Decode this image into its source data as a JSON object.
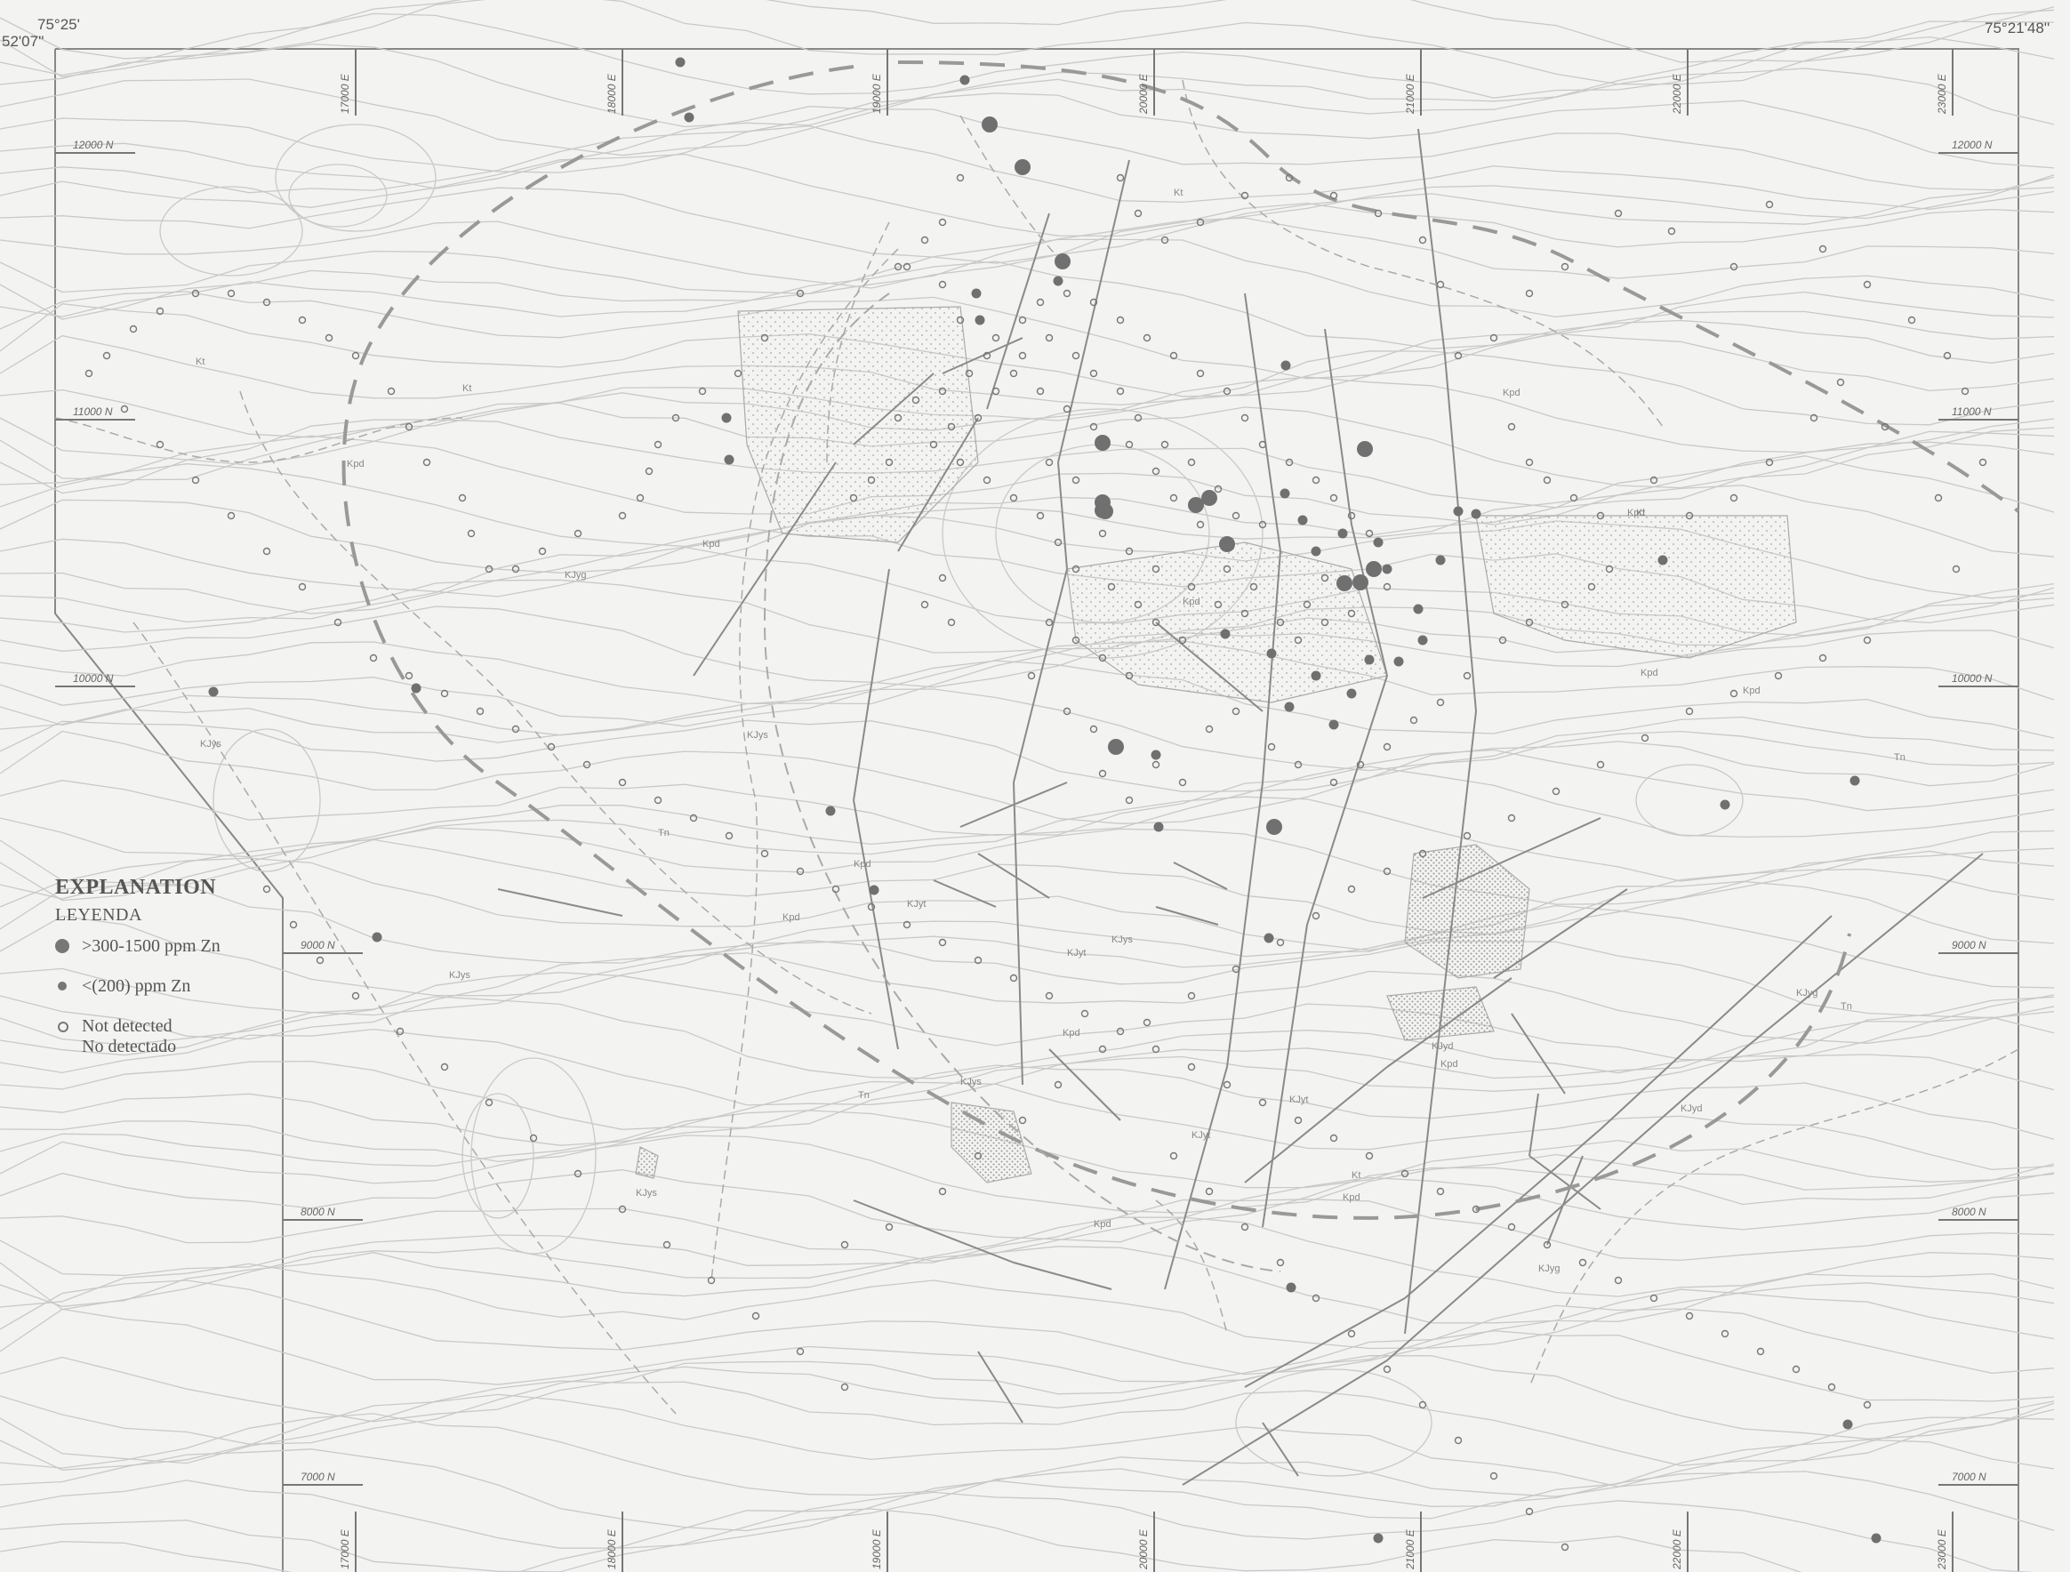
{
  "corners": {
    "top_left_lon": "75°25'",
    "top_left_lat": "52'07''",
    "top_right_lon": "75°21'48''"
  },
  "grid": {
    "easting_top": [
      "17000 E",
      "18000 E",
      "19000 E",
      "20000 E",
      "21000 E",
      "22000 E",
      "23000 E"
    ],
    "easting_bottom": [
      "17000 E",
      "18000 E",
      "19000 E",
      "20000 E",
      "21000 E",
      "22000 E",
      "23000 E"
    ],
    "northing_left": [
      "12000 N",
      "11000 N",
      "10000 N",
      "9000 N",
      "8000 N",
      "7000 N"
    ],
    "northing_right": [
      "12000 N",
      "11000 N",
      "10000 N",
      "9000 N",
      "8000 N",
      "7000 N"
    ]
  },
  "units": [
    "Kt",
    "Kt",
    "Kt",
    "Kt",
    "Kpd",
    "Kpd",
    "Kpd",
    "Kpd",
    "Kpd",
    "Kpd",
    "Kpd",
    "Kpd",
    "Kpd",
    "Kpd",
    "Kpd",
    "Kpd",
    "KJys",
    "KJys",
    "KJys",
    "KJys",
    "KJys",
    "KJys",
    "KJyt",
    "KJyt",
    "KJyt",
    "KJyt",
    "KJyd",
    "KJyd",
    "KJyg",
    "KJyg",
    "KJyg",
    "Tn",
    "Tn",
    "Tn",
    "Tn",
    "Kt",
    "Kpd"
  ],
  "legend": {
    "title": "EXPLANATION",
    "subtitle": "LEYENDA",
    "items": [
      {
        "symbol": "large-filled-dot",
        "label": ">300-1500 ppm Zn"
      },
      {
        "symbol": "small-filled-dot",
        "label": "<(200) ppm Zn"
      },
      {
        "symbol": "open-circle",
        "label": "Not detected",
        "label2": "No detectado"
      }
    ]
  },
  "samples": {
    "high_zn": [
      [
        1240,
        565
      ],
      [
        1240,
        498
      ],
      [
        1360,
        560
      ],
      [
        1345,
        568
      ],
      [
        1535,
        505
      ],
      [
        1545,
        640
      ],
      [
        1512,
        656
      ],
      [
        1530,
        655
      ],
      [
        1380,
        612
      ],
      [
        1255,
        840
      ],
      [
        1433,
        930
      ],
      [
        1195,
        294
      ],
      [
        1150,
        188
      ],
      [
        1113,
        140
      ],
      [
        1243,
        575
      ],
      [
        1240,
        574
      ]
    ],
    "low_zn": [
      [
        765,
        70
      ],
      [
        1085,
        90
      ],
      [
        775,
        132
      ],
      [
        1098,
        330
      ],
      [
        1102,
        360
      ],
      [
        817,
        470
      ],
      [
        820,
        517
      ],
      [
        1190,
        316
      ],
      [
        1446,
        411
      ],
      [
        1445,
        555
      ],
      [
        1465,
        585
      ],
      [
        1480,
        620
      ],
      [
        1510,
        600
      ],
      [
        1550,
        610
      ],
      [
        1560,
        640
      ],
      [
        1640,
        575
      ],
      [
        1620,
        630
      ],
      [
        1600,
        720
      ],
      [
        1595,
        685
      ],
      [
        1660,
        578
      ],
      [
        1870,
        630
      ],
      [
        1940,
        905
      ],
      [
        2086,
        878
      ],
      [
        1427,
        1055
      ],
      [
        1303,
        930
      ],
      [
        1378,
        713
      ],
      [
        1430,
        735
      ],
      [
        1450,
        795
      ],
      [
        1480,
        760
      ],
      [
        1500,
        815
      ],
      [
        1520,
        780
      ],
      [
        1540,
        742
      ],
      [
        1573,
        744
      ],
      [
        1300,
        849
      ],
      [
        983,
        1001
      ],
      [
        1452,
        1448
      ],
      [
        1550,
        1730
      ],
      [
        2078,
        1602
      ],
      [
        2110,
        1730
      ],
      [
        240,
        778
      ],
      [
        468,
        774
      ],
      [
        424,
        1054
      ],
      [
        934,
        912
      ]
    ],
    "not_detected": [
      [
        1020,
        300
      ],
      [
        1060,
        320
      ],
      [
        1080,
        360
      ],
      [
        1120,
        380
      ],
      [
        1140,
        420
      ],
      [
        1170,
        440
      ],
      [
        1200,
        460
      ],
      [
        1230,
        480
      ],
      [
        1270,
        500
      ],
      [
        1300,
        530
      ],
      [
        1320,
        560
      ],
      [
        1350,
        590
      ],
      [
        1380,
        640
      ],
      [
        1410,
        660
      ],
      [
        1440,
        700
      ],
      [
        1460,
        720
      ],
      [
        1490,
        700
      ],
      [
        1520,
        690
      ],
      [
        1560,
        660
      ],
      [
        1050,
        500
      ],
      [
        1080,
        520
      ],
      [
        1110,
        540
      ],
      [
        1140,
        560
      ],
      [
        1170,
        580
      ],
      [
        1190,
        610
      ],
      [
        1210,
        640
      ],
      [
        1250,
        660
      ],
      [
        1280,
        680
      ],
      [
        1300,
        700
      ],
      [
        1330,
        720
      ],
      [
        960,
        560
      ],
      [
        980,
        540
      ],
      [
        1000,
        520
      ],
      [
        1010,
        470
      ],
      [
        1030,
        450
      ],
      [
        1060,
        440
      ],
      [
        1090,
        420
      ],
      [
        1110,
        400
      ],
      [
        1150,
        360
      ],
      [
        1170,
        340
      ],
      [
        1200,
        330
      ],
      [
        1230,
        340
      ],
      [
        1260,
        360
      ],
      [
        1290,
        380
      ],
      [
        1320,
        400
      ],
      [
        1350,
        420
      ],
      [
        1380,
        440
      ],
      [
        1400,
        470
      ],
      [
        1420,
        500
      ],
      [
        1450,
        520
      ],
      [
        1480,
        540
      ],
      [
        1500,
        560
      ],
      [
        1520,
        580
      ],
      [
        1540,
        600
      ],
      [
        1490,
        650
      ],
      [
        1470,
        680
      ],
      [
        1420,
        590
      ],
      [
        1390,
        580
      ],
      [
        1370,
        550
      ],
      [
        1340,
        520
      ],
      [
        1310,
        500
      ],
      [
        1280,
        470
      ],
      [
        1260,
        440
      ],
      [
        1230,
        420
      ],
      [
        1210,
        400
      ],
      [
        1180,
        380
      ],
      [
        1150,
        400
      ],
      [
        1120,
        440
      ],
      [
        1100,
        470
      ],
      [
        1070,
        480
      ],
      [
        1180,
        520
      ],
      [
        1210,
        540
      ],
      [
        1240,
        600
      ],
      [
        1270,
        620
      ],
      [
        1300,
        640
      ],
      [
        1340,
        660
      ],
      [
        1370,
        680
      ],
      [
        1400,
        690
      ],
      [
        1180,
        700
      ],
      [
        1210,
        720
      ],
      [
        1240,
        740
      ],
      [
        1270,
        760
      ],
      [
        1060,
        650
      ],
      [
        1040,
        680
      ],
      [
        1070,
        700
      ],
      [
        1160,
        760
      ],
      [
        1200,
        800
      ],
      [
        1230,
        820
      ],
      [
        1240,
        870
      ],
      [
        1270,
        900
      ],
      [
        1300,
        860
      ],
      [
        1330,
        880
      ],
      [
        1360,
        820
      ],
      [
        1390,
        800
      ],
      [
        1430,
        840
      ],
      [
        1460,
        860
      ],
      [
        1500,
        880
      ],
      [
        1530,
        860
      ],
      [
        1560,
        840
      ],
      [
        1590,
        810
      ],
      [
        1620,
        790
      ],
      [
        1650,
        760
      ],
      [
        1690,
        720
      ],
      [
        1720,
        700
      ],
      [
        1760,
        680
      ],
      [
        1790,
        660
      ],
      [
        1810,
        640
      ],
      [
        1800,
        580
      ],
      [
        1770,
        560
      ],
      [
        1740,
        540
      ],
      [
        1720,
        520
      ],
      [
        1700,
        480
      ],
      [
        1860,
        540
      ],
      [
        1900,
        580
      ],
      [
        1950,
        560
      ],
      [
        1990,
        520
      ],
      [
        2040,
        470
      ],
      [
        2070,
        430
      ],
      [
        2120,
        480
      ],
      [
        2180,
        560
      ],
      [
        2200,
        640
      ],
      [
        2230,
        520
      ],
      [
        2210,
        440
      ],
      [
        2190,
        400
      ],
      [
        2150,
        360
      ],
      [
        2100,
        320
      ],
      [
        2050,
        280
      ],
      [
        1990,
        230
      ],
      [
        1950,
        300
      ],
      [
        1880,
        260
      ],
      [
        1820,
        240
      ],
      [
        1760,
        300
      ],
      [
        1720,
        330
      ],
      [
        1680,
        380
      ],
      [
        1640,
        400
      ],
      [
        1620,
        320
      ],
      [
        1600,
        270
      ],
      [
        1550,
        240
      ],
      [
        1500,
        220
      ],
      [
        1450,
        200
      ],
      [
        1400,
        220
      ],
      [
        1350,
        250
      ],
      [
        1310,
        270
      ],
      [
        1280,
        240
      ],
      [
        1260,
        200
      ],
      [
        1080,
        200
      ],
      [
        1060,
        250
      ],
      [
        1040,
        270
      ],
      [
        1010,
        300
      ],
      [
        900,
        330
      ],
      [
        860,
        380
      ],
      [
        830,
        420
      ],
      [
        790,
        440
      ],
      [
        760,
        470
      ],
      [
        740,
        500
      ],
      [
        730,
        530
      ],
      [
        720,
        560
      ],
      [
        700,
        580
      ],
      [
        650,
        600
      ],
      [
        610,
        620
      ],
      [
        580,
        640
      ],
      [
        550,
        640
      ],
      [
        530,
        600
      ],
      [
        520,
        560
      ],
      [
        480,
        520
      ],
      [
        460,
        480
      ],
      [
        440,
        440
      ],
      [
        400,
        400
      ],
      [
        370,
        380
      ],
      [
        340,
        360
      ],
      [
        300,
        340
      ],
      [
        260,
        330
      ],
      [
        220,
        330
      ],
      [
        180,
        350
      ],
      [
        150,
        370
      ],
      [
        120,
        400
      ],
      [
        100,
        420
      ],
      [
        140,
        460
      ],
      [
        180,
        500
      ],
      [
        220,
        540
      ],
      [
        260,
        580
      ],
      [
        300,
        620
      ],
      [
        340,
        660
      ],
      [
        380,
        700
      ],
      [
        420,
        740
      ],
      [
        460,
        760
      ],
      [
        500,
        780
      ],
      [
        540,
        800
      ],
      [
        580,
        820
      ],
      [
        620,
        840
      ],
      [
        660,
        860
      ],
      [
        700,
        880
      ],
      [
        740,
        900
      ],
      [
        780,
        920
      ],
      [
        820,
        940
      ],
      [
        860,
        960
      ],
      [
        900,
        980
      ],
      [
        940,
        1000
      ],
      [
        980,
        1020
      ],
      [
        1020,
        1040
      ],
      [
        1060,
        1060
      ],
      [
        1100,
        1080
      ],
      [
        1140,
        1100
      ],
      [
        1180,
        1120
      ],
      [
        1220,
        1140
      ],
      [
        1260,
        1160
      ],
      [
        1300,
        1180
      ],
      [
        1340,
        1200
      ],
      [
        1380,
        1220
      ],
      [
        1420,
        1240
      ],
      [
        1460,
        1260
      ],
      [
        1500,
        1280
      ],
      [
        1540,
        1300
      ],
      [
        1580,
        1320
      ],
      [
        1620,
        1340
      ],
      [
        1660,
        1360
      ],
      [
        1700,
        1380
      ],
      [
        1740,
        1400
      ],
      [
        1780,
        1420
      ],
      [
        1820,
        1440
      ],
      [
        1860,
        1460
      ],
      [
        1900,
        1480
      ],
      [
        1940,
        1500
      ],
      [
        1980,
        1520
      ],
      [
        2020,
        1540
      ],
      [
        2060,
        1560
      ],
      [
        2100,
        1580
      ],
      [
        950,
        1400
      ],
      [
        1000,
        1380
      ],
      [
        1060,
        1340
      ],
      [
        1100,
        1300
      ],
      [
        1150,
        1260
      ],
      [
        1190,
        1220
      ],
      [
        1240,
        1180
      ],
      [
        1290,
        1150
      ],
      [
        1340,
        1120
      ],
      [
        1390,
        1090
      ],
      [
        1440,
        1060
      ],
      [
        1480,
        1030
      ],
      [
        1520,
        1000
      ],
      [
        1560,
        980
      ],
      [
        1600,
        960
      ],
      [
        1650,
        940
      ],
      [
        1700,
        920
      ],
      [
        1750,
        890
      ],
      [
        1800,
        860
      ],
      [
        1850,
        830
      ],
      [
        1900,
        800
      ],
      [
        1950,
        780
      ],
      [
        2000,
        760
      ],
      [
        2050,
        740
      ],
      [
        2100,
        720
      ],
      [
        1320,
        1300
      ],
      [
        1360,
        1340
      ],
      [
        1400,
        1380
      ],
      [
        1440,
        1420
      ],
      [
        1480,
        1460
      ],
      [
        1520,
        1500
      ],
      [
        1560,
        1540
      ],
      [
        1600,
        1580
      ],
      [
        1640,
        1620
      ],
      [
        1680,
        1660
      ],
      [
        1720,
        1700
      ],
      [
        1760,
        1740
      ],
      [
        950,
        1560
      ],
      [
        900,
        1520
      ],
      [
        850,
        1480
      ],
      [
        800,
        1440
      ],
      [
        750,
        1400
      ],
      [
        700,
        1360
      ],
      [
        650,
        1320
      ],
      [
        600,
        1280
      ],
      [
        550,
        1240
      ],
      [
        500,
        1200
      ],
      [
        450,
        1160
      ],
      [
        400,
        1120
      ],
      [
        360,
        1080
      ],
      [
        330,
        1040
      ],
      [
        300,
        1000
      ]
    ]
  }
}
